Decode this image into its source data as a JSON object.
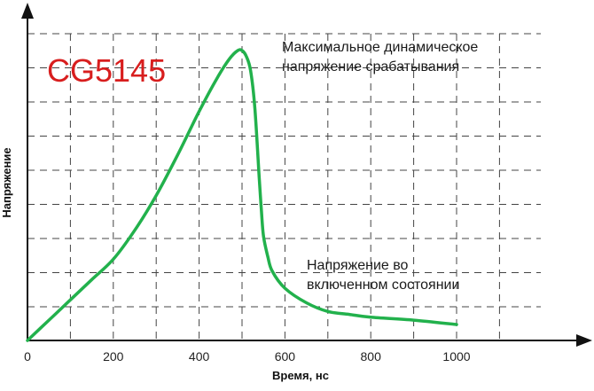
{
  "chart_data": {
    "type": "line",
    "model_label": "CG5145",
    "xlabel": "Время, нс",
    "ylabel": "Напряжение",
    "xlim": [
      0,
      1200
    ],
    "x_ticks": [
      "0",
      "200",
      "400",
      "600",
      "800",
      "1000"
    ],
    "x_tick_values": [
      0,
      200,
      400,
      600,
      800,
      1000
    ],
    "y_ticks_labeled": false,
    "grid": true,
    "annotations": [
      {
        "text_lines": [
          "Максимальное динамическое",
          "напряжение срабатывания"
        ],
        "near_x": 500
      },
      {
        "text_lines": [
          "Напряжение во",
          "включенном состоянии"
        ],
        "near_x": 700
      }
    ],
    "series": [
      {
        "color": "#22b14c",
        "x": [
          0,
          50,
          100,
          150,
          200,
          250,
          300,
          350,
          400,
          440,
          470,
          490,
          500,
          510,
          520,
          530,
          540,
          545,
          550,
          560,
          570,
          600,
          650,
          700,
          750,
          800,
          900,
          1000
        ],
        "y": [
          0.0,
          0.07,
          0.14,
          0.21,
          0.28,
          0.38,
          0.5,
          0.64,
          0.79,
          0.9,
          0.97,
          1.0,
          1.0,
          0.98,
          0.93,
          0.8,
          0.56,
          0.45,
          0.36,
          0.29,
          0.24,
          0.18,
          0.13,
          0.1,
          0.09,
          0.08,
          0.07,
          0.055
        ]
      }
    ]
  }
}
